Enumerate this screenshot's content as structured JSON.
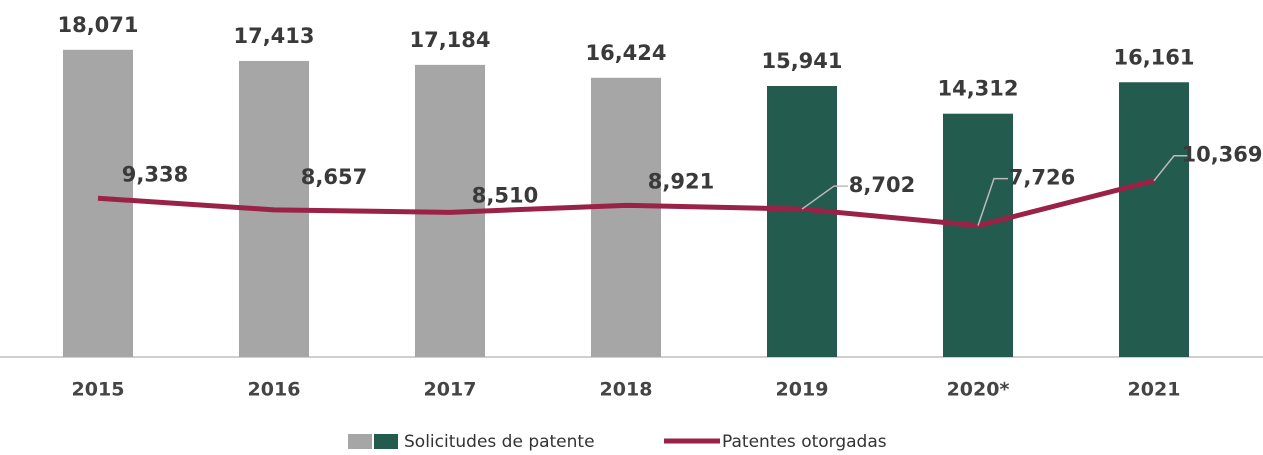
{
  "chart_data": {
    "type": "bar",
    "categories": [
      "2015",
      "2016",
      "2017",
      "2018",
      "2019",
      "2020*",
      "2021"
    ],
    "series": [
      {
        "name": "Solicitudes de patente",
        "type": "bar",
        "colors": [
          "#a6a6a6",
          "#a6a6a6",
          "#a6a6a6",
          "#a6a6a6",
          "#235b4e",
          "#235b4e",
          "#235b4e"
        ],
        "values": [
          18071,
          17413,
          17184,
          16424,
          15941,
          14312,
          16161
        ],
        "value_labels": [
          "18,071",
          "17,413",
          "17,184",
          "16,424",
          "15,941",
          "14,312",
          "16,161"
        ]
      },
      {
        "name": "Patentes otorgadas",
        "type": "line",
        "color": "#9b2247",
        "values": [
          9338,
          8657,
          8510,
          8921,
          8702,
          7726,
          10369
        ],
        "value_labels": [
          "9,338",
          "8,657",
          "8,510",
          "8,921",
          "8,702",
          "7,726",
          "10,369"
        ]
      }
    ],
    "ylim": [
      0,
      21000
    ],
    "legend": "bottom"
  }
}
